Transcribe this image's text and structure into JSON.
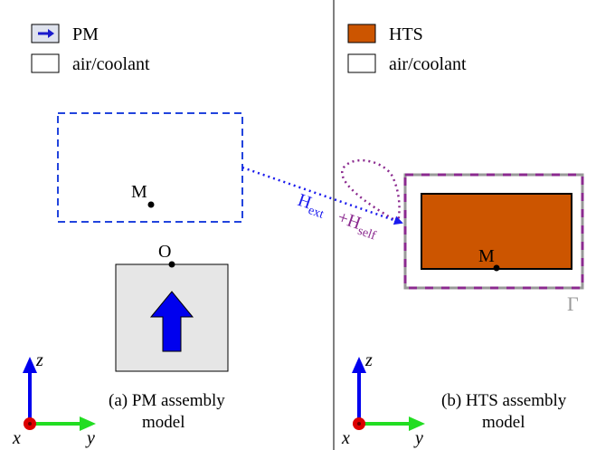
{
  "left_panel": {
    "legend": [
      {
        "label": "PM",
        "icon": "blue-arrow-swatch-icon"
      },
      {
        "label": "air/coolant",
        "icon": "white-swatch-icon"
      }
    ],
    "point_m": "M",
    "point_o": "O",
    "caption_line1": "(a) PM assembly",
    "caption_line2": "model",
    "axes": {
      "z": "z",
      "x": "x",
      "y": "y"
    }
  },
  "right_panel": {
    "legend": [
      {
        "label": "HTS",
        "icon": "orange-swatch-icon"
      },
      {
        "label": "air/coolant",
        "icon": "white-swatch-icon"
      }
    ],
    "point_m": "M",
    "boundary": "Γ",
    "caption_line1": "(b) HTS assembly",
    "caption_line2": "model",
    "axes": {
      "z": "z",
      "x": "x",
      "y": "y"
    }
  },
  "fields": {
    "h_ext": "H",
    "h_ext_sub": "ext",
    "plus": "+",
    "h_self": "H",
    "h_self_sub": "self"
  },
  "colors": {
    "pm_fill": "#e6e6e6",
    "hts_fill": "#cc5500",
    "arrow_blue": "#0000ee",
    "dashed_blue": "#2244dd",
    "purple": "#8b2a8f",
    "axis_red": "#dd0000",
    "axis_green": "#22dd22",
    "boundary_gray": "#999999"
  }
}
